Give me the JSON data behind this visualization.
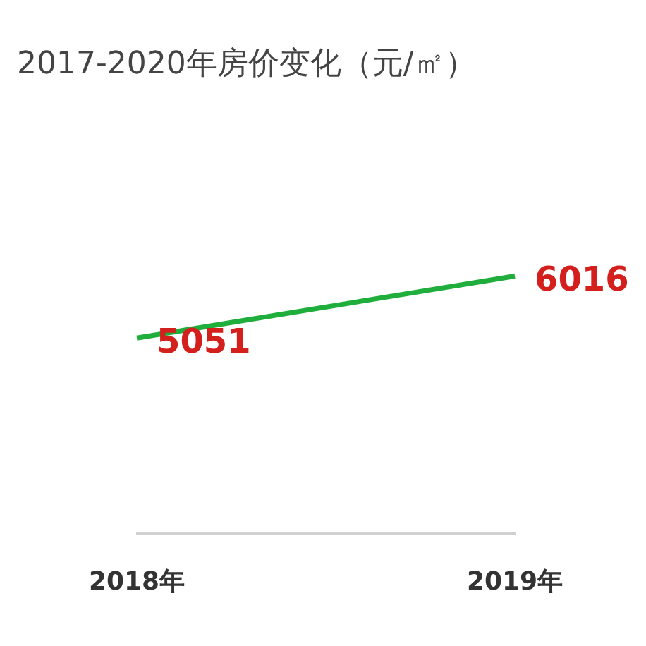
{
  "chart_data": {
    "type": "line",
    "title": "2017-2020年房价变化（元/㎡）",
    "categories": [
      "2018年",
      "2019年"
    ],
    "series": [
      {
        "color": "#1fae3c",
        "values": [
          5051,
          6016
        ]
      }
    ],
    "data_labels": true,
    "grid": false,
    "legend": false,
    "marker": "none",
    "line_style": "solid"
  }
}
